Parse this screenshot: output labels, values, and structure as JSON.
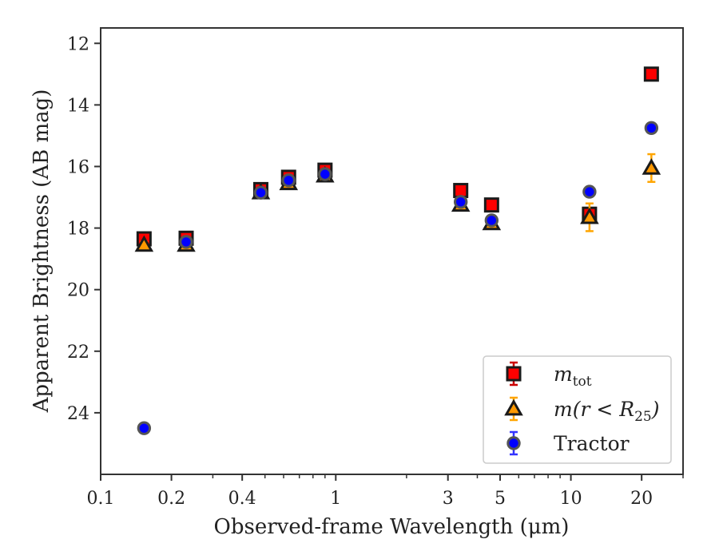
{
  "chart_data": {
    "type": "scatter",
    "title": "",
    "xlabel": "Observed-frame Wavelength (μm)",
    "ylabel": "Apparent Brightness (AB mag)",
    "xscale": "log",
    "xlim": [
      0.1,
      30
    ],
    "ylim": [
      26.0,
      11.5
    ],
    "y_inverted": true,
    "grid": false,
    "legend_position": "lower-right",
    "x_ticks": [
      {
        "value": 0.1,
        "label": "0.1"
      },
      {
        "value": 0.2,
        "label": "0.2"
      },
      {
        "value": 0.4,
        "label": "0.4"
      },
      {
        "value": 1,
        "label": "1"
      },
      {
        "value": 3,
        "label": "3"
      },
      {
        "value": 5,
        "label": "5"
      },
      {
        "value": 10,
        "label": "10"
      },
      {
        "value": 20,
        "label": "20"
      }
    ],
    "y_ticks": [
      12,
      14,
      16,
      18,
      20,
      22,
      24
    ],
    "series": [
      {
        "name": "m_tot",
        "legend_label": "m",
        "legend_sub": "tot",
        "marker": "square",
        "color": "#ff0000",
        "errcolor": "#cc0000",
        "points": [
          {
            "x": 0.153,
            "y": 18.35,
            "err": 0.1
          },
          {
            "x": 0.231,
            "y": 18.33,
            "err": 0.1
          },
          {
            "x": 0.48,
            "y": 16.75,
            "err": 0.05
          },
          {
            "x": 0.63,
            "y": 16.35,
            "err": 0.05
          },
          {
            "x": 0.9,
            "y": 16.12,
            "err": 0.05
          },
          {
            "x": 3.4,
            "y": 16.78,
            "err": 0.05
          },
          {
            "x": 4.6,
            "y": 17.25,
            "err": 0.05
          },
          {
            "x": 12.0,
            "y": 17.55,
            "err": 0.1
          },
          {
            "x": 22.0,
            "y": 13.0,
            "err": 0.05
          }
        ]
      },
      {
        "name": "m(r < R25)",
        "legend_label": "m(r < R",
        "legend_sub": "25",
        "legend_suffix": ")",
        "marker": "triangle",
        "color": "#ff9900",
        "errcolor": "#ffa500",
        "points": [
          {
            "x": 0.153,
            "y": 18.55,
            "err": 0.1
          },
          {
            "x": 0.231,
            "y": 18.55,
            "err": 0.1
          },
          {
            "x": 0.48,
            "y": 16.85,
            "err": 0.05
          },
          {
            "x": 0.63,
            "y": 16.55,
            "err": 0.05
          },
          {
            "x": 0.9,
            "y": 16.3,
            "err": 0.05
          },
          {
            "x": 3.4,
            "y": 17.25,
            "err": 0.05
          },
          {
            "x": 4.6,
            "y": 17.85,
            "err": 0.05
          },
          {
            "x": 12.0,
            "y": 17.65,
            "err": 0.45
          },
          {
            "x": 22.0,
            "y": 16.05,
            "err": 0.45
          }
        ]
      },
      {
        "name": "Tractor",
        "legend_label": "Tractor",
        "marker": "circle",
        "color": "#0000ff",
        "errcolor": "#3333ff",
        "points": [
          {
            "x": 0.153,
            "y": 24.5,
            "err": 0.05
          },
          {
            "x": 0.231,
            "y": 18.45,
            "err": 0.05
          },
          {
            "x": 0.48,
            "y": 16.85,
            "err": 0.05
          },
          {
            "x": 0.63,
            "y": 16.45,
            "err": 0.05
          },
          {
            "x": 0.9,
            "y": 16.25,
            "err": 0.05
          },
          {
            "x": 3.4,
            "y": 17.15,
            "err": 0.05
          },
          {
            "x": 4.6,
            "y": 17.75,
            "err": 0.05
          },
          {
            "x": 12.0,
            "y": 16.82,
            "err": 0.05
          },
          {
            "x": 22.0,
            "y": 14.75,
            "err": 0.05
          }
        ]
      }
    ]
  }
}
